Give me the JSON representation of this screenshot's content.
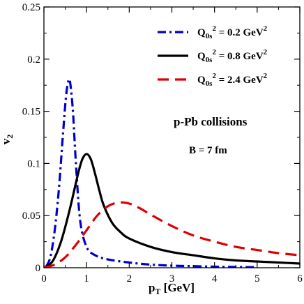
{
  "chart_data": {
    "type": "line",
    "xlabel": "p_T [GeV]",
    "ylabel": "v_2",
    "xlim": [
      0,
      6
    ],
    "ylim": [
      0,
      0.25
    ],
    "xticks": [
      0,
      1,
      2,
      3,
      4,
      5,
      6
    ],
    "yticks": [
      0,
      0.05,
      0.1,
      0.15,
      0.2,
      0.25
    ],
    "xtick_labels": [
      "0",
      "1",
      "2",
      "3",
      "4",
      "5",
      "6"
    ],
    "ytick_labels": [
      "0",
      "0.05",
      "0.1",
      "0.15",
      "0.2",
      "0.25"
    ],
    "grid": false,
    "legend_position": "top-right",
    "annotations": [
      "p-Pb collisions",
      "B = 7 fm"
    ],
    "series": [
      {
        "name": "Q_0s^2 = 0.2 GeV^2",
        "color": "#0000cc",
        "dash": "dash-dot",
        "x": [
          0.05,
          0.15,
          0.25,
          0.35,
          0.45,
          0.52,
          0.58,
          0.62,
          0.68,
          0.75,
          0.85,
          1.0,
          1.2,
          1.5,
          2.0,
          2.5,
          3.0,
          3.5,
          4.0,
          5.0
        ],
        "y": [
          0.001,
          0.01,
          0.035,
          0.075,
          0.13,
          0.165,
          0.18,
          0.176,
          0.15,
          0.1,
          0.045,
          0.02,
          0.012,
          0.008,
          0.005,
          0.003,
          0.002,
          0.0015,
          0.001,
          0.0005
        ]
      },
      {
        "name": "Q_0s^2 = 0.8 GeV^2",
        "color": "#000000",
        "dash": "solid",
        "x": [
          0.0,
          0.2,
          0.4,
          0.6,
          0.8,
          0.9,
          1.0,
          1.1,
          1.2,
          1.3,
          1.4,
          1.6,
          1.8,
          2.0,
          2.5,
          3.0,
          3.5,
          4.0,
          4.5,
          5.0,
          5.5,
          6.0
        ],
        "y": [
          0.0,
          0.006,
          0.025,
          0.055,
          0.09,
          0.104,
          0.109,
          0.104,
          0.09,
          0.074,
          0.06,
          0.043,
          0.034,
          0.028,
          0.02,
          0.015,
          0.012,
          0.009,
          0.007,
          0.006,
          0.005,
          0.004
        ]
      },
      {
        "name": "Q_0s^2 = 2.4 GeV^2",
        "color": "#dd0000",
        "dash": "dash",
        "x": [
          0.0,
          0.25,
          0.5,
          0.75,
          1.0,
          1.25,
          1.5,
          1.75,
          2.0,
          2.25,
          2.5,
          3.0,
          3.5,
          4.0,
          4.5,
          5.0,
          5.5,
          6.0
        ],
        "y": [
          0.0,
          0.003,
          0.01,
          0.022,
          0.036,
          0.05,
          0.059,
          0.0625,
          0.0615,
          0.057,
          0.051,
          0.04,
          0.031,
          0.025,
          0.02,
          0.017,
          0.014,
          0.012
        ]
      }
    ]
  }
}
